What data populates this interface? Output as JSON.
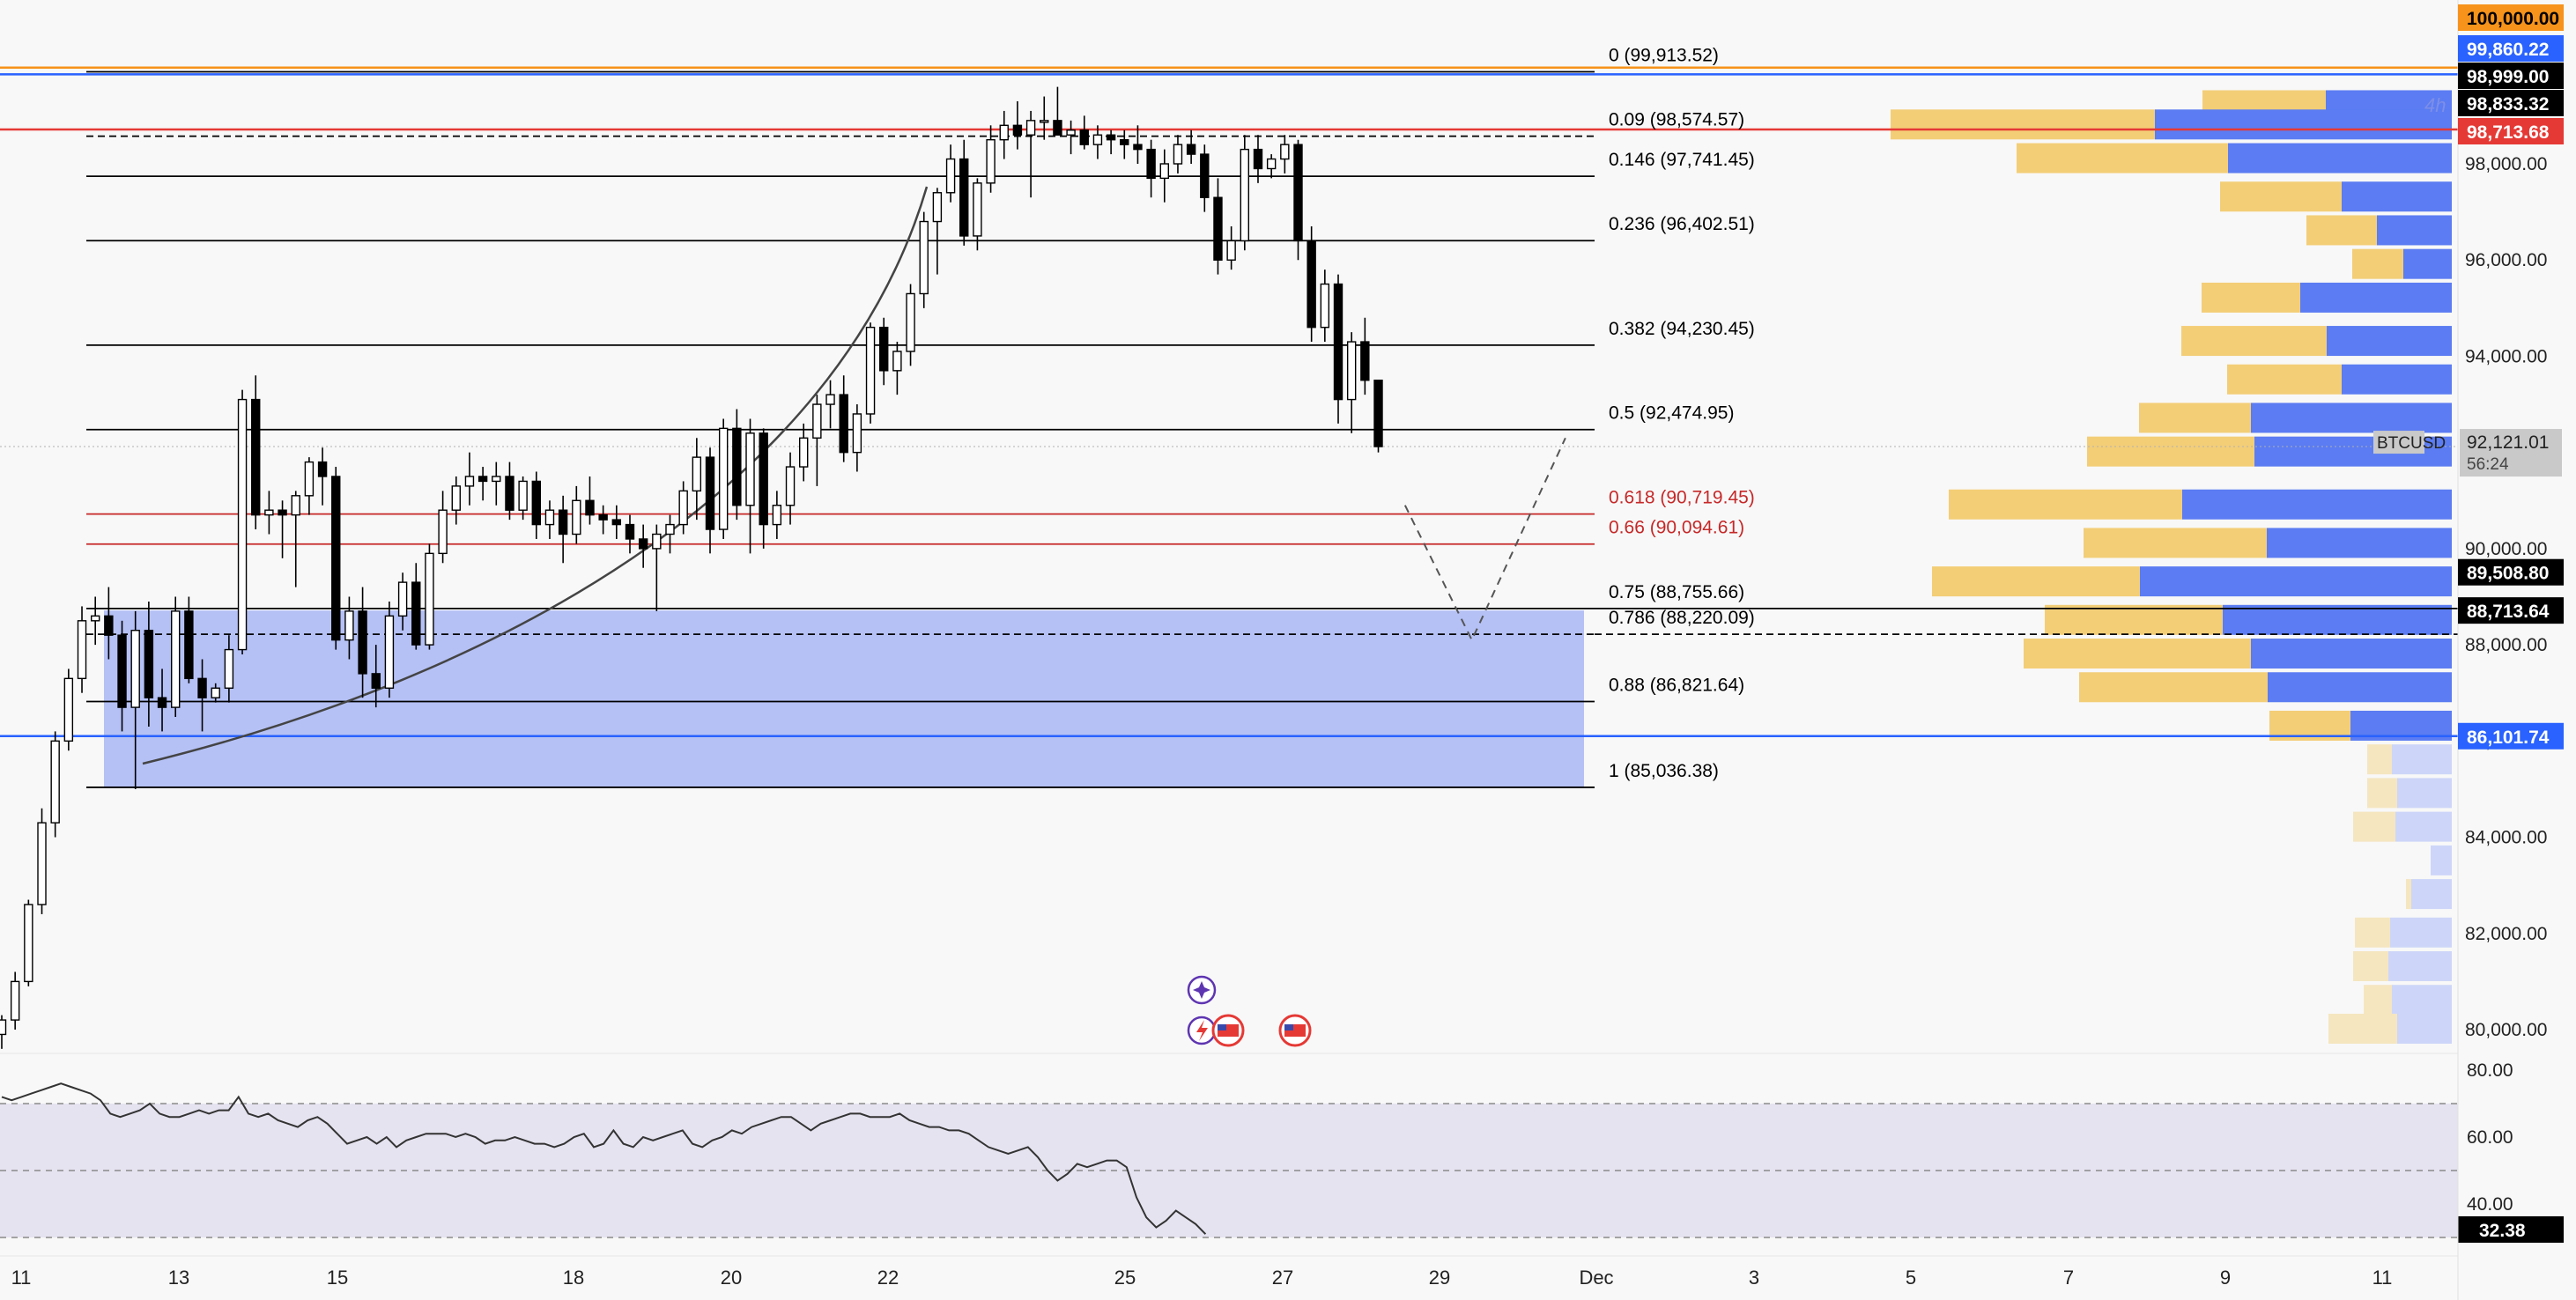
{
  "chart_data": [
    {
      "type": "candlestick",
      "symbol": "BTCUSD",
      "timeframe": "4h",
      "y_range": [
        78700,
        100500
      ],
      "x_ticks": [
        "11",
        "13",
        "15",
        "18",
        "20",
        "22",
        "25",
        "27",
        "29",
        "Dec",
        "3",
        "5",
        "7",
        "9",
        "11"
      ],
      "y_ticks": [
        "80,000.00",
        "82,000.00",
        "84,000.00",
        "86,000.00",
        "88,000.00",
        "90,000.00",
        "92,000.00",
        "94,000.00",
        "96,000.00",
        "98,000.00"
      ],
      "last_price": {
        "value": "92,121.01",
        "countdown": "56:24"
      },
      "price_tags": [
        {
          "text": "100,000.00",
          "value": 100000,
          "color": "#f7931a",
          "text_color": "#000000"
        },
        {
          "text": "99,860.22",
          "value": 99860.22,
          "color": "#2962ff",
          "text_color": "#ffffff"
        },
        {
          "text": "98,999.00",
          "value": 98999,
          "color": "#000000",
          "text_color": "#ffffff"
        },
        {
          "text": "98,833.32",
          "value": 98833.32,
          "color": "#000000",
          "text_color": "#ffffff"
        },
        {
          "text": "98,713.68",
          "value": 98713.68,
          "color": "#e53935",
          "text_color": "#ffffff"
        },
        {
          "text": "89,508.80",
          "value": 89508.8,
          "color": "#000000",
          "text_color": "#ffffff"
        },
        {
          "text": "88,713.64",
          "value": 88713.64,
          "color": "#000000",
          "text_color": "#ffffff"
        },
        {
          "text": "86,101.74",
          "value": 86101.74,
          "color": "#2962ff",
          "text_color": "#ffffff"
        }
      ],
      "fib_levels": [
        {
          "label": "0 (99,913.52)",
          "value": 99913.52,
          "color": "#000000"
        },
        {
          "label": "0.09 (98,574.57)",
          "value": 98574.57,
          "color": "#000000"
        },
        {
          "label": "0.146 (97,741.45)",
          "value": 97741.45,
          "color": "#000000"
        },
        {
          "label": "0.236 (96,402.51)",
          "value": 96402.51,
          "color": "#000000"
        },
        {
          "label": "0.382 (94,230.45)",
          "value": 94230.45,
          "color": "#000000"
        },
        {
          "label": "0.5 (92,474.95)",
          "value": 92474.95,
          "color": "#000000"
        },
        {
          "label": "0.618 (90,719.45)",
          "value": 90719.45,
          "color": "#c62828"
        },
        {
          "label": "0.66 (90,094.61)",
          "value": 90094.61,
          "color": "#c62828"
        },
        {
          "label": "0.75 (88,755.66)",
          "value": 88755.66,
          "color": "#000000"
        },
        {
          "label": "0.786 (88,220.09)",
          "value": 88220.09,
          "color": "#000000"
        },
        {
          "label": "0.88 (86,821.64)",
          "value": 86821.64,
          "color": "#000000"
        },
        {
          "label": "1 (85,036.38)",
          "value": 85036.38,
          "color": "#000000"
        }
      ],
      "horizontal_lines": [
        {
          "value": 100000,
          "color": "#f7931a"
        },
        {
          "value": 99860.22,
          "color": "#2962ff"
        },
        {
          "value": 98713.68,
          "color": "#e53935"
        },
        {
          "value": 86101.74,
          "color": "#2962ff"
        }
      ],
      "demand_zone": {
        "from_value": 85036.38,
        "to_value": 88713.64,
        "color": "#a9b7f5"
      },
      "volume_profile": [
        {
          "price": 99200,
          "up": 140,
          "down": 143
        },
        {
          "price": 98800,
          "up": 300,
          "down": 337
        },
        {
          "price": 98100,
          "up": 240,
          "down": 254
        },
        {
          "price": 97300,
          "up": 138,
          "down": 125
        },
        {
          "price": 96600,
          "up": 80,
          "down": 85
        },
        {
          "price": 95900,
          "up": 58,
          "down": 55
        },
        {
          "price": 95200,
          "up": 112,
          "down": 172
        },
        {
          "price": 94300,
          "up": 165,
          "down": 142
        },
        {
          "price": 93500,
          "up": 130,
          "down": 125
        },
        {
          "price": 92700,
          "up": 127,
          "down": 228
        },
        {
          "price": 92000,
          "up": 190,
          "down": 224
        },
        {
          "price": 90900,
          "up": 265,
          "down": 306
        },
        {
          "price": 90100,
          "up": 208,
          "down": 210
        },
        {
          "price": 89300,
          "up": 236,
          "down": 354
        },
        {
          "price": 88500,
          "up": 202,
          "down": 260
        },
        {
          "price": 87800,
          "up": 258,
          "down": 228
        },
        {
          "price": 87100,
          "up": 214,
          "down": 209
        },
        {
          "price": 86300,
          "up": 92,
          "down": 115
        },
        {
          "price": 85600,
          "up": 28,
          "down": 68,
          "faint": true
        },
        {
          "price": 84900,
          "up": 34,
          "down": 62,
          "faint": true
        },
        {
          "price": 84200,
          "up": 48,
          "down": 64,
          "faint": true
        },
        {
          "price": 83500,
          "up": 0,
          "down": 24,
          "faint": true
        },
        {
          "price": 82800,
          "up": 6,
          "down": 46,
          "faint": true
        },
        {
          "price": 82000,
          "up": 40,
          "down": 70,
          "faint": true
        },
        {
          "price": 81300,
          "up": 40,
          "down": 72,
          "faint": true
        },
        {
          "price": 80600,
          "up": 32,
          "down": 68,
          "faint": true
        },
        {
          "price": 80000,
          "up": 78,
          "down": 62,
          "faint": true
        }
      ],
      "candles": [
        [
          79900,
          80300,
          79600,
          80200
        ],
        [
          80200,
          81200,
          80000,
          81000
        ],
        [
          81000,
          82700,
          80900,
          82600
        ],
        [
          82600,
          84600,
          82400,
          84300
        ],
        [
          84300,
          86200,
          84000,
          86000
        ],
        [
          86000,
          87500,
          85800,
          87300
        ],
        [
          87300,
          88800,
          87000,
          88500
        ],
        [
          88500,
          89000,
          88000,
          88600
        ],
        [
          88600,
          89200,
          87700,
          88200
        ],
        [
          88200,
          88500,
          86200,
          86700
        ],
        [
          86700,
          88700,
          85000,
          88300
        ],
        [
          88300,
          88900,
          86300,
          86900
        ],
        [
          86900,
          87500,
          86200,
          86700
        ],
        [
          86700,
          89000,
          86500,
          88700
        ],
        [
          88700,
          89000,
          87200,
          87300
        ],
        [
          87300,
          87700,
          86200,
          86900
        ],
        [
          86900,
          87200,
          86800,
          87100
        ],
        [
          87100,
          88200,
          86800,
          87900
        ],
        [
          87900,
          93300,
          87800,
          93100
        ],
        [
          93100,
          93600,
          90400,
          90700
        ],
        [
          90700,
          91200,
          90300,
          90800
        ],
        [
          90800,
          91000,
          89800,
          90700
        ],
        [
          90700,
          91200,
          89200,
          91100
        ],
        [
          91100,
          91900,
          90700,
          91800
        ],
        [
          91800,
          92100,
          90900,
          91500
        ],
        [
          91500,
          91700,
          87900,
          88100
        ],
        [
          88100,
          89000,
          87700,
          88700
        ],
        [
          88700,
          89200,
          86900,
          87400
        ],
        [
          87400,
          88000,
          86700,
          87100
        ],
        [
          87100,
          88900,
          86900,
          88600
        ],
        [
          88600,
          89500,
          88300,
          89300
        ],
        [
          89300,
          89700,
          87900,
          88000
        ],
        [
          88000,
          90100,
          87900,
          89900
        ],
        [
          89900,
          91200,
          89700,
          90800
        ],
        [
          90800,
          91500,
          90500,
          91300
        ],
        [
          91300,
          92000,
          90900,
          91500
        ],
        [
          91500,
          91700,
          91000,
          91400
        ],
        [
          91400,
          91800,
          90900,
          91500
        ],
        [
          91500,
          91800,
          90600,
          90800
        ],
        [
          90800,
          91500,
          90600,
          91400
        ],
        [
          91400,
          91600,
          90200,
          90500
        ],
        [
          90500,
          91000,
          90200,
          90800
        ],
        [
          90800,
          91100,
          89700,
          90300
        ],
        [
          90300,
          91300,
          90100,
          91000
        ],
        [
          91000,
          91500,
          90500,
          90700
        ],
        [
          90700,
          90900,
          90300,
          90600
        ],
        [
          90600,
          90900,
          90200,
          90500
        ],
        [
          90500,
          90700,
          89900,
          90200
        ],
        [
          90200,
          90500,
          89600,
          90000
        ],
        [
          90000,
          90500,
          88700,
          90300
        ],
        [
          90300,
          90700,
          89900,
          90500
        ],
        [
          90500,
          91400,
          90300,
          91200
        ],
        [
          91200,
          92300,
          90600,
          91900
        ],
        [
          91900,
          92100,
          89900,
          90400
        ],
        [
          90400,
          92700,
          90200,
          92500
        ],
        [
          92500,
          92900,
          90600,
          90900
        ],
        [
          90900,
          92700,
          89900,
          92400
        ],
        [
          92400,
          92500,
          90000,
          90500
        ],
        [
          90500,
          91200,
          90200,
          90900
        ],
        [
          90900,
          92000,
          90500,
          91700
        ],
        [
          91700,
          92600,
          91400,
          92300
        ],
        [
          92300,
          93200,
          91300,
          93000
        ],
        [
          93000,
          93500,
          92500,
          93200
        ],
        [
          93200,
          93600,
          91800,
          92000
        ],
        [
          92000,
          93000,
          91600,
          92800
        ],
        [
          92800,
          94700,
          92600,
          94600
        ],
        [
          94600,
          94800,
          93400,
          93700
        ],
        [
          93700,
          94300,
          93200,
          94100
        ],
        [
          94100,
          95500,
          93800,
          95300
        ],
        [
          95300,
          97000,
          95000,
          96800
        ],
        [
          96800,
          97500,
          95700,
          97400
        ],
        [
          97400,
          98400,
          97200,
          98100
        ],
        [
          98100,
          98500,
          96300,
          96500
        ],
        [
          96500,
          97700,
          96200,
          97600
        ],
        [
          97600,
          98800,
          97400,
          98500
        ],
        [
          98500,
          99100,
          98100,
          98800
        ],
        [
          98800,
          99300,
          98300,
          98600
        ],
        [
          98600,
          99100,
          97300,
          98900
        ],
        [
          98900,
          99400,
          98500,
          98900
        ],
        [
          98900,
          99600,
          98600,
          98600
        ],
        [
          98600,
          98900,
          98200,
          98700
        ],
        [
          98700,
          99000,
          98300,
          98400
        ],
        [
          98400,
          98800,
          98100,
          98600
        ],
        [
          98600,
          98700,
          98200,
          98500
        ],
        [
          98500,
          98700,
          98100,
          98400
        ],
        [
          98400,
          98800,
          98000,
          98300
        ],
        [
          98300,
          98500,
          97300,
          97700
        ],
        [
          97700,
          98300,
          97200,
          98000
        ],
        [
          98000,
          98600,
          97800,
          98400
        ],
        [
          98400,
          98700,
          98000,
          98200
        ],
        [
          98200,
          98400,
          97000,
          97300
        ],
        [
          97300,
          97700,
          95700,
          96000
        ],
        [
          96000,
          96700,
          95800,
          96400
        ],
        [
          96400,
          98600,
          96200,
          98300
        ],
        [
          98300,
          98600,
          97600,
          97900
        ],
        [
          97900,
          98200,
          97700,
          98100
        ],
        [
          98100,
          98600,
          97800,
          98400
        ],
        [
          98400,
          98500,
          96000,
          96400
        ],
        [
          96400,
          96700,
          94300,
          94600
        ],
        [
          94600,
          95800,
          94300,
          95500
        ],
        [
          95500,
          95700,
          92600,
          93100
        ],
        [
          93100,
          94500,
          92400,
          94300
        ],
        [
          94300,
          94800,
          93200,
          93500
        ],
        [
          93500,
          93500,
          92000,
          92121
        ]
      ],
      "projection_path": [
        {
          "x_offset_candles": 2,
          "price": 90900
        },
        {
          "x_offset_candles": 7,
          "price": 88100
        },
        {
          "x_offset_candles": 14,
          "price": 92300
        }
      ],
      "rsi": {
        "y_ticks": [
          "80.00",
          "60.00",
          "40.00"
        ],
        "upper": 70,
        "middle": 50,
        "lower": 30,
        "range": [
          26,
          85
        ],
        "last_value": "32.38",
        "values": [
          72,
          71,
          72,
          73,
          74,
          75,
          76,
          75,
          74,
          73,
          71,
          67,
          66,
          67,
          68,
          70,
          67,
          66,
          66,
          67,
          68,
          67,
          68,
          68,
          72,
          67,
          66,
          67,
          65,
          64,
          63,
          65,
          66,
          64,
          61,
          58,
          59,
          60,
          58,
          60,
          57,
          59,
          60,
          61,
          61,
          61,
          60,
          61,
          60,
          58,
          59,
          59,
          60,
          59,
          58,
          58,
          57,
          58,
          60,
          61,
          57,
          58,
          62,
          58,
          57,
          60,
          59,
          60,
          61,
          62,
          58,
          57,
          59,
          60,
          62,
          61,
          63,
          64,
          65,
          66,
          66,
          64,
          62,
          64,
          65,
          66,
          67,
          67,
          66,
          66,
          66,
          67,
          65,
          64,
          63,
          63,
          62,
          62,
          61,
          59,
          57,
          56,
          55,
          56,
          57,
          54,
          50,
          47,
          49,
          52,
          51,
          52,
          53,
          53,
          51,
          42,
          36,
          33,
          35,
          38,
          36,
          34,
          31
        ]
      }
    }
  ]
}
